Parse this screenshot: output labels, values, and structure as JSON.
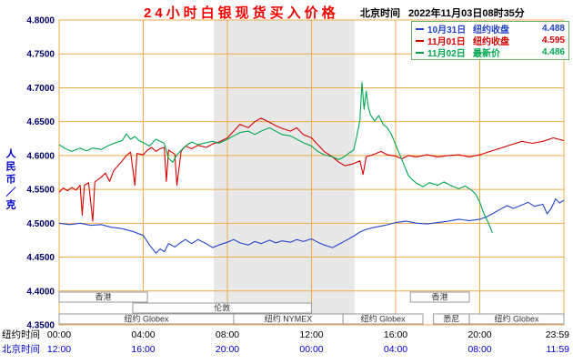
{
  "header": {
    "title": "24小时白银现货买入价格",
    "clock_label": "北京时间",
    "clock_value": "2022年11月03日08时35分"
  },
  "chart_data": {
    "type": "line",
    "title": "24小时白银现货买入价格",
    "ylabel": "人民币／克",
    "ylim": [
      4.35,
      4.8
    ],
    "ytick_labels": [
      "4.8000",
      "4.7500",
      "4.7000",
      "4.6500",
      "4.6000",
      "4.5500",
      "4.5000",
      "4.4500",
      "4.4000",
      "4.3500"
    ],
    "ytick_color": "#000066",
    "x_hours": [
      0,
      24
    ],
    "grid_color": "#efab49",
    "legend_border_color": "#6ab26a",
    "axis_rows": {
      "ny_label": "纽约时间",
      "bj_label": "北京时间",
      "ny_color": "#000000",
      "bj_color": "#0000cc"
    },
    "xticks": [
      {
        "t": 0,
        "ny": "00:00",
        "bj": "12:00"
      },
      {
        "t": 4,
        "ny": "04:00",
        "bj": "16:00"
      },
      {
        "t": 8,
        "ny": "08:00",
        "bj": "20:00"
      },
      {
        "t": 12,
        "ny": "12:00",
        "bj": "00:00"
      },
      {
        "t": 16,
        "ny": "16:00",
        "bj": "04:00"
      },
      {
        "t": 20,
        "ny": "20:00",
        "bj": "08:00"
      },
      {
        "t": 24,
        "ny": "23:59",
        "bj": "11:59"
      }
    ],
    "shaded_band": {
      "start": 7.35,
      "end": 14.05,
      "color": "#e8e8e8"
    },
    "sessions": [
      {
        "row": 0,
        "start": 0,
        "end": 4.2,
        "label": "香港"
      },
      {
        "row": 0,
        "start": 16.7,
        "end": 19.5,
        "label": "香港"
      },
      {
        "row": 1,
        "start": 3.5,
        "end": 12,
        "label": "伦敦"
      },
      {
        "row": 2,
        "start": 0,
        "end": 8.3,
        "label": "纽约 Globex"
      },
      {
        "row": 2,
        "start": 8.3,
        "end": 13.5,
        "label": "纽约 NYMEX"
      },
      {
        "row": 2,
        "start": 13.5,
        "end": 17.3,
        "label": "纽约 Globex"
      },
      {
        "row": 2,
        "start": 17.8,
        "end": 19.5,
        "label": "悉尼"
      },
      {
        "row": 2,
        "start": 19.5,
        "end": 24,
        "label": "纽约 Globex"
      }
    ],
    "series": [
      {
        "name": "10月31日",
        "legend_label": "纽约收盘",
        "legend_value": "4.488",
        "color": "#2244cc",
        "points": [
          [
            0,
            4.5
          ],
          [
            0.5,
            4.498
          ],
          [
            1,
            4.5
          ],
          [
            1.5,
            4.497
          ],
          [
            2,
            4.498
          ],
          [
            2.5,
            4.494
          ],
          [
            3,
            4.492
          ],
          [
            3.5,
            4.488
          ],
          [
            4,
            4.482
          ],
          [
            4.3,
            4.468
          ],
          [
            4.6,
            4.456
          ],
          [
            4.8,
            4.462
          ],
          [
            5,
            4.458
          ],
          [
            5.2,
            4.47
          ],
          [
            5.5,
            4.465
          ],
          [
            5.8,
            4.472
          ],
          [
            6,
            4.476
          ],
          [
            6.3,
            4.47
          ],
          [
            6.6,
            4.476
          ],
          [
            7,
            4.47
          ],
          [
            7.3,
            4.464
          ],
          [
            7.6,
            4.468
          ],
          [
            8,
            4.472
          ],
          [
            8.3,
            4.476
          ],
          [
            8.6,
            4.471
          ],
          [
            9,
            4.468
          ],
          [
            9.3,
            4.473
          ],
          [
            9.6,
            4.47
          ],
          [
            10,
            4.475
          ],
          [
            10.3,
            4.471
          ],
          [
            10.6,
            4.474
          ],
          [
            11,
            4.472
          ],
          [
            11.3,
            4.476
          ],
          [
            11.6,
            4.473
          ],
          [
            12,
            4.477
          ],
          [
            12.3,
            4.472
          ],
          [
            12.6,
            4.468
          ],
          [
            13,
            4.464
          ],
          [
            13.3,
            4.469
          ],
          [
            13.6,
            4.474
          ],
          [
            14,
            4.481
          ],
          [
            14.3,
            4.487
          ],
          [
            14.6,
            4.491
          ],
          [
            15,
            4.494
          ],
          [
            15.5,
            4.497
          ],
          [
            16,
            4.501
          ],
          [
            16.5,
            4.503
          ],
          [
            17,
            4.5
          ],
          [
            17.5,
            4.499
          ],
          [
            18,
            4.501
          ],
          [
            18.5,
            4.503
          ],
          [
            19,
            4.506
          ],
          [
            19.5,
            4.504
          ],
          [
            20,
            4.506
          ],
          [
            20.3,
            4.509
          ],
          [
            20.6,
            4.514
          ],
          [
            21,
            4.521
          ],
          [
            21.3,
            4.526
          ],
          [
            21.6,
            4.522
          ],
          [
            22,
            4.527
          ],
          [
            22.3,
            4.531
          ],
          [
            22.6,
            4.525
          ],
          [
            23,
            4.528
          ],
          [
            23.2,
            4.514
          ],
          [
            23.4,
            4.522
          ],
          [
            23.6,
            4.536
          ],
          [
            23.8,
            4.53
          ],
          [
            24,
            4.534
          ]
        ]
      },
      {
        "name": "11月01日",
        "legend_label": "纽约收盘",
        "legend_value": "4.595",
        "color": "#d40000",
        "points": [
          [
            0,
            4.546
          ],
          [
            0.2,
            4.552
          ],
          [
            0.4,
            4.548
          ],
          [
            0.6,
            4.553
          ],
          [
            0.8,
            4.549
          ],
          [
            1,
            4.556
          ],
          [
            1.1,
            4.512
          ],
          [
            1.2,
            4.556
          ],
          [
            1.4,
            4.56
          ],
          [
            1.6,
            4.503
          ],
          [
            1.7,
            4.561
          ],
          [
            2,
            4.568
          ],
          [
            2.2,
            4.574
          ],
          [
            2.4,
            4.562
          ],
          [
            2.6,
            4.578
          ],
          [
            2.8,
            4.585
          ],
          [
            3,
            4.592
          ],
          [
            3.2,
            4.6
          ],
          [
            3.4,
            4.605
          ],
          [
            3.6,
            4.556
          ],
          [
            3.7,
            4.603
          ],
          [
            4,
            4.601
          ],
          [
            4.2,
            4.608
          ],
          [
            4.4,
            4.612
          ],
          [
            4.6,
            4.606
          ],
          [
            4.8,
            4.61
          ],
          [
            5,
            4.612
          ],
          [
            5.1,
            4.562
          ],
          [
            5.2,
            4.608
          ],
          [
            5.5,
            4.602
          ],
          [
            5.6,
            4.556
          ],
          [
            5.8,
            4.606
          ],
          [
            6,
            4.614
          ],
          [
            6.3,
            4.61
          ],
          [
            6.6,
            4.615
          ],
          [
            7,
            4.612
          ],
          [
            7.3,
            4.617
          ],
          [
            7.6,
            4.62
          ],
          [
            8,
            4.626
          ],
          [
            8.3,
            4.636
          ],
          [
            8.6,
            4.646
          ],
          [
            9,
            4.641
          ],
          [
            9.3,
            4.65
          ],
          [
            9.6,
            4.655
          ],
          [
            10,
            4.649
          ],
          [
            10.3,
            4.644
          ],
          [
            10.6,
            4.64
          ],
          [
            11,
            4.636
          ],
          [
            11.3,
            4.641
          ],
          [
            11.6,
            4.631
          ],
          [
            12,
            4.626
          ],
          [
            12.3,
            4.616
          ],
          [
            12.6,
            4.606
          ],
          [
            13,
            4.598
          ],
          [
            13.3,
            4.59
          ],
          [
            13.6,
            4.585
          ],
          [
            14,
            4.588
          ],
          [
            14.3,
            4.592
          ],
          [
            14.45,
            4.572
          ],
          [
            14.6,
            4.598
          ],
          [
            15,
            4.602
          ],
          [
            15.3,
            4.606
          ],
          [
            15.6,
            4.601
          ],
          [
            16,
            4.599
          ],
          [
            16.3,
            4.595
          ],
          [
            16.6,
            4.6
          ],
          [
            17,
            4.598
          ],
          [
            17.5,
            4.601
          ],
          [
            18,
            4.598
          ],
          [
            18.5,
            4.6
          ],
          [
            19,
            4.601
          ],
          [
            19.5,
            4.598
          ],
          [
            20,
            4.601
          ],
          [
            20.5,
            4.606
          ],
          [
            21,
            4.611
          ],
          [
            21.5,
            4.616
          ],
          [
            22,
            4.621
          ],
          [
            22.5,
            4.618
          ],
          [
            23,
            4.621
          ],
          [
            23.5,
            4.626
          ],
          [
            24,
            4.622
          ]
        ]
      },
      {
        "name": "11月02日",
        "legend_label": "最新价",
        "legend_value": "4.486",
        "color": "#00a651",
        "points": [
          [
            0,
            4.616
          ],
          [
            0.3,
            4.61
          ],
          [
            0.6,
            4.606
          ],
          [
            1,
            4.611
          ],
          [
            1.3,
            4.607
          ],
          [
            1.6,
            4.611
          ],
          [
            2,
            4.609
          ],
          [
            2.3,
            4.614
          ],
          [
            2.6,
            4.618
          ],
          [
            3,
            4.622
          ],
          [
            3.2,
            4.632
          ],
          [
            3.4,
            4.624
          ],
          [
            3.6,
            4.628
          ],
          [
            3.8,
            4.622
          ],
          [
            4,
            4.619
          ],
          [
            4.3,
            4.614
          ],
          [
            4.6,
            4.624
          ],
          [
            5,
            4.618
          ],
          [
            5.2,
            4.596
          ],
          [
            5.4,
            4.59
          ],
          [
            5.6,
            4.601
          ],
          [
            6,
            4.614
          ],
          [
            6.3,
            4.62
          ],
          [
            6.6,
            4.616
          ],
          [
            7,
            4.619
          ],
          [
            7.3,
            4.621
          ],
          [
            7.6,
            4.618
          ],
          [
            8,
            4.624
          ],
          [
            8.3,
            4.629
          ],
          [
            8.6,
            4.634
          ],
          [
            9,
            4.636
          ],
          [
            9.3,
            4.631
          ],
          [
            9.6,
            4.636
          ],
          [
            10,
            4.641
          ],
          [
            10.3,
            4.636
          ],
          [
            10.6,
            4.631
          ],
          [
            11,
            4.629
          ],
          [
            11.3,
            4.624
          ],
          [
            11.6,
            4.619
          ],
          [
            12,
            4.614
          ],
          [
            12.3,
            4.606
          ],
          [
            12.6,
            4.601
          ],
          [
            13,
            4.598
          ],
          [
            13.3,
            4.594
          ],
          [
            13.6,
            4.599
          ],
          [
            13.8,
            4.604
          ],
          [
            14,
            4.608
          ],
          [
            14.15,
            4.628
          ],
          [
            14.3,
            4.652
          ],
          [
            14.4,
            4.708
          ],
          [
            14.5,
            4.668
          ],
          [
            14.6,
            4.695
          ],
          [
            14.7,
            4.672
          ],
          [
            14.8,
            4.66
          ],
          [
            15,
            4.651
          ],
          [
            15.2,
            4.659
          ],
          [
            15.4,
            4.646
          ],
          [
            15.6,
            4.641
          ],
          [
            15.8,
            4.631
          ],
          [
            16,
            4.616
          ],
          [
            16.2,
            4.601
          ],
          [
            16.4,
            4.586
          ],
          [
            16.6,
            4.571
          ],
          [
            16.8,
            4.564
          ],
          [
            17,
            4.559
          ],
          [
            17.3,
            4.554
          ],
          [
            17.6,
            4.56
          ],
          [
            18,
            4.556
          ],
          [
            18.3,
            4.561
          ],
          [
            18.6,
            4.556
          ],
          [
            19,
            4.551
          ],
          [
            19.3,
            4.555
          ],
          [
            19.6,
            4.549
          ],
          [
            19.8,
            4.543
          ],
          [
            20,
            4.531
          ],
          [
            20.2,
            4.514
          ],
          [
            20.4,
            4.501
          ],
          [
            20.6,
            4.486
          ]
        ]
      }
    ]
  }
}
